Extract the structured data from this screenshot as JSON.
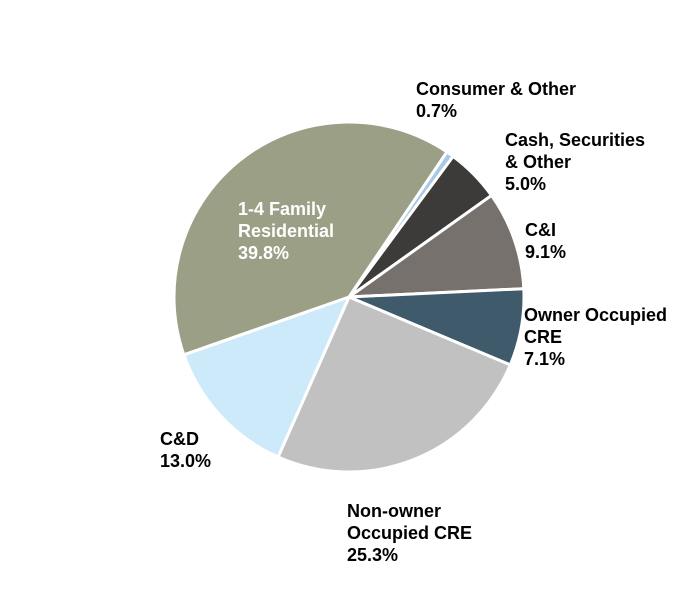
{
  "chart_data": {
    "type": "pie",
    "start_angle_deg": 34,
    "direction": "clockwise",
    "slices": [
      {
        "label": "Consumer & Other",
        "value": 0.7,
        "display": "0.7%",
        "color": "#a9c8e6"
      },
      {
        "label": "Cash, Securities & Other",
        "value": 5.0,
        "display": "5.0%",
        "color": "#3c3b39"
      },
      {
        "label": "C&I",
        "value": 9.1,
        "display": "9.1%",
        "color": "#77716e"
      },
      {
        "label": "Owner Occupied CRE",
        "value": 7.1,
        "display": "7.1%",
        "color": "#3e5a6b"
      },
      {
        "label": "Non-owner Occupied CRE",
        "value": 25.3,
        "display": "25.3%",
        "color": "#c1c1c1"
      },
      {
        "label": "C&D",
        "value": 13.0,
        "display": "13.0%",
        "color": "#cdeafa"
      },
      {
        "label": "1-4 Family Residential",
        "value": 39.8,
        "display": "39.8%",
        "color": "#9a9f85"
      }
    ]
  },
  "labels": {
    "consumer": {
      "line1": "Consumer & Other",
      "pct": "0.7%"
    },
    "cash": {
      "line1": "Cash, Securities",
      "line2": "& Other",
      "pct": "5.0%"
    },
    "ci": {
      "line1": "C&I",
      "pct": "9.1%"
    },
    "owner": {
      "line1": "Owner Occupied",
      "line2": "CRE",
      "pct": "7.1%"
    },
    "nonowner": {
      "line1": "Non-owner",
      "line2": "Occupied CRE",
      "pct": "25.3%"
    },
    "cd": {
      "line1": "C&D",
      "pct": "13.0%"
    },
    "family": {
      "line1": "1-4 Family",
      "line2": "Residential",
      "pct": "39.8%"
    }
  }
}
